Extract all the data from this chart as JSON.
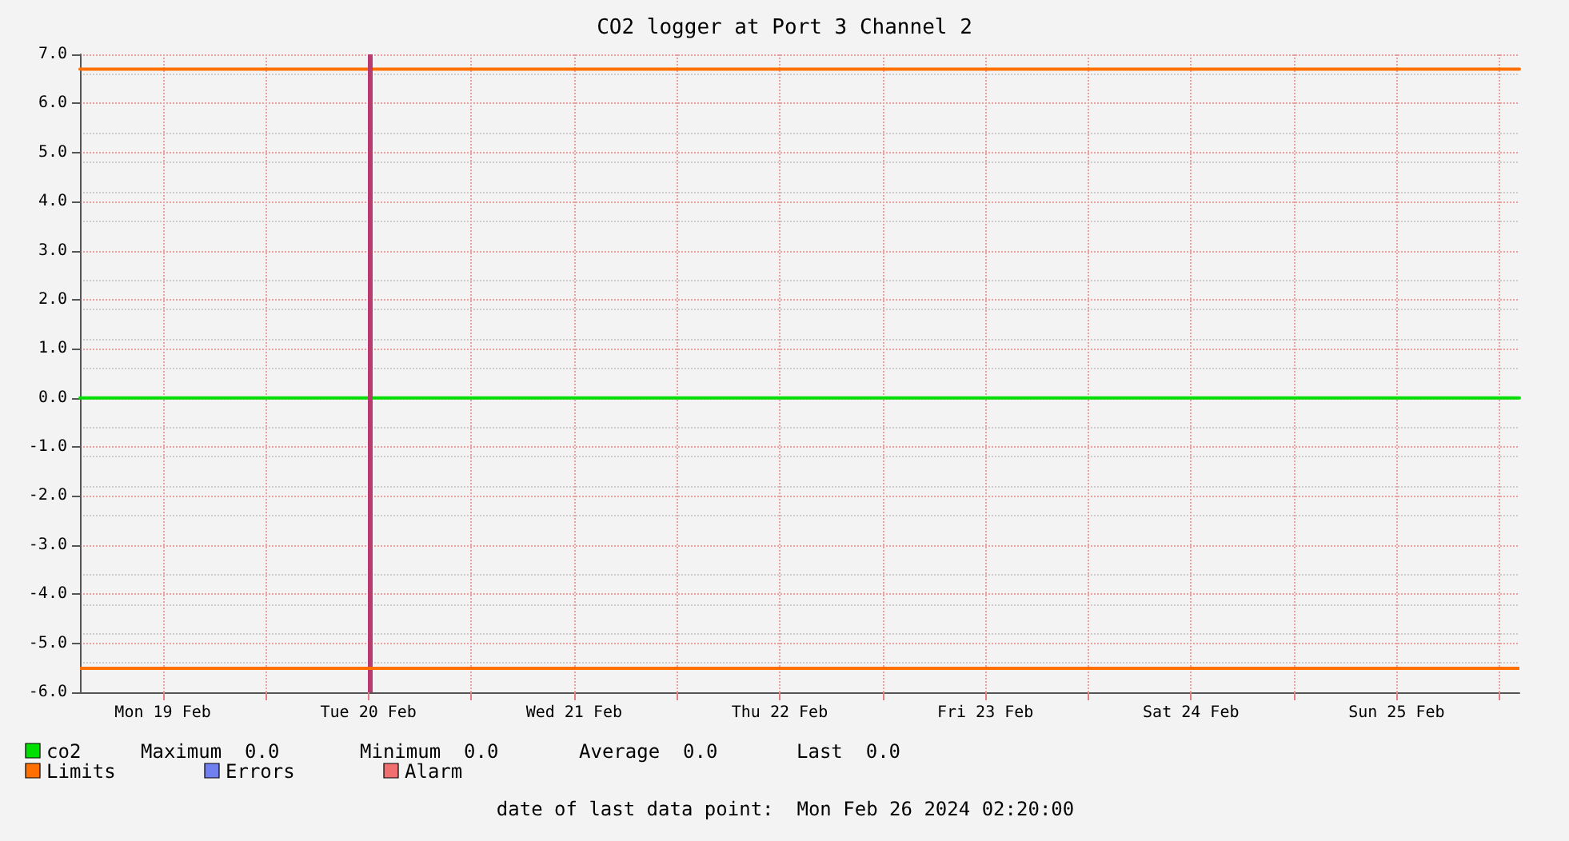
{
  "chart_data": {
    "type": "line",
    "title": "CO2 logger at Port 3 Channel 2",
    "x": [
      "2024-02-19T02:20",
      "2024-02-26T02:20"
    ],
    "xlim": [
      "2024-02-19T02:20",
      "2024-02-26T02:20"
    ],
    "xticks": [
      {
        "value": "2024-02-19T12:00",
        "label": "Mon 19 Feb"
      },
      {
        "value": "2024-02-20T00:00",
        "label": null
      },
      {
        "value": "2024-02-20T12:00",
        "label": "Tue 20 Feb"
      },
      {
        "value": "2024-02-21T00:00",
        "label": null
      },
      {
        "value": "2024-02-21T12:00",
        "label": "Wed 21 Feb"
      },
      {
        "value": "2024-02-22T00:00",
        "label": null
      },
      {
        "value": "2024-02-22T12:00",
        "label": "Thu 22 Feb"
      },
      {
        "value": "2024-02-23T00:00",
        "label": null
      },
      {
        "value": "2024-02-23T12:00",
        "label": "Fri 23 Feb"
      },
      {
        "value": "2024-02-24T00:00",
        "label": null
      },
      {
        "value": "2024-02-24T12:00",
        "label": "Sat 24 Feb"
      },
      {
        "value": "2024-02-25T00:00",
        "label": null
      },
      {
        "value": "2024-02-25T12:00",
        "label": "Sun 25 Feb"
      },
      {
        "value": "2024-02-26T00:00",
        "label": null
      }
    ],
    "ylim": [
      -6,
      7
    ],
    "yticks": [
      {
        "value": -6,
        "label": "-6.0"
      },
      {
        "value": -5,
        "label": "-5.0"
      },
      {
        "value": -4,
        "label": "-4.0"
      },
      {
        "value": -3,
        "label": "-3.0"
      },
      {
        "value": -2,
        "label": "-2.0"
      },
      {
        "value": -1,
        "label": "-1.0"
      },
      {
        "value": 0,
        "label": "0.0"
      },
      {
        "value": 1,
        "label": "1.0"
      },
      {
        "value": 2,
        "label": "2.0"
      },
      {
        "value": 3,
        "label": "3.0"
      },
      {
        "value": 4,
        "label": "4.0"
      },
      {
        "value": 5,
        "label": "5.0"
      },
      {
        "value": 6,
        "label": "6.0"
      },
      {
        "value": 7,
        "label": "7.0"
      }
    ],
    "series": [
      {
        "name": "co2",
        "color": "#00e000",
        "values": [
          0,
          0
        ]
      },
      {
        "name": "Limits",
        "color": "#ff7000",
        "values": [
          6.7,
          6.7
        ]
      },
      {
        "name": "Errors",
        "color": "#7080f0",
        "values": [
          null,
          null
        ]
      },
      {
        "name": "Alarm",
        "color": "#f07070",
        "values": [
          null,
          null
        ]
      }
    ],
    "ref_lines": [
      {
        "axis": "x",
        "value": "2024-02-20T12:05",
        "label": null,
        "color": "#b83a6e"
      },
      {
        "axis": "y",
        "value": -5.5,
        "label": null,
        "color": "#ff7000"
      }
    ],
    "annotations": [
      "Maximum  0.0",
      "Minimum  0.0",
      "Average  0.0",
      "Last  0.0",
      "date of last data point:  Mon Feb 26 2024 02:20:00"
    ],
    "grid": true,
    "legend": "bottom left",
    "marker": "none",
    "line_style": "solid"
  }
}
